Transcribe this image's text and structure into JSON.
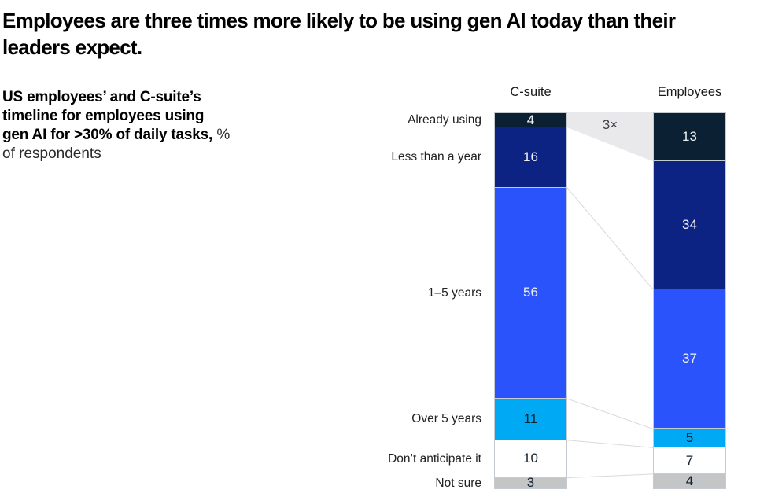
{
  "title": {
    "lines": [
      "Employees are three times more likely to be using gen AI today than their",
      "leaders expect."
    ]
  },
  "subtitle": {
    "lines": [
      {
        "bold": "US employees’ and C-suite’s",
        "regular": ""
      },
      {
        "bold": "timeline for employees using",
        "regular": ""
      },
      {
        "bold": "gen AI for >30% of daily tasks,",
        "regular": " %"
      },
      {
        "bold": "",
        "regular": "of respondents"
      }
    ]
  },
  "chart_data": {
    "type": "bar",
    "subtype": "paired-stacked-percentage-columns",
    "title": "Employees are three times more likely to be using gen AI today than their leaders expect.",
    "subtitle": "US employees’ and C-suite’s timeline for employees using gen AI for >30% of daily tasks, % of respondents",
    "unit": "% of respondents",
    "categories": [
      "Already using",
      "Less than a year",
      "1–5 years",
      "Over 5 years",
      "Don’t anticipate it",
      "Not sure"
    ],
    "series": [
      {
        "name": "C-suite",
        "values": [
          4,
          16,
          56,
          11,
          10,
          3
        ]
      },
      {
        "name": "Employees",
        "values": [
          13,
          34,
          37,
          5,
          7,
          4
        ]
      }
    ],
    "annotation": {
      "label": "3×",
      "between_category": "Already using"
    },
    "ylim": [
      0,
      100
    ],
    "layout_hints": {
      "value_labels": "inside segments",
      "category_labels": "left of first column",
      "column_headers": "above columns",
      "connector_band": "between first segments",
      "grid": "off",
      "legend": "none"
    },
    "colors": {
      "segments": [
        "#0c2033",
        "#0d2383",
        "#2a53fb",
        "#00a9f4",
        "#ffffff",
        "#c3c5c7"
      ],
      "value_text": [
        "#eef1f4",
        "#eef1f4",
        "#eef1f4",
        "#13202e",
        "#13202e",
        "#13202e"
      ],
      "connector_band": "#e9e9eb",
      "connector_line": "#d9d9d9",
      "segment_border": "#c6cbd1",
      "annotation_text": "#3a3f44"
    }
  }
}
